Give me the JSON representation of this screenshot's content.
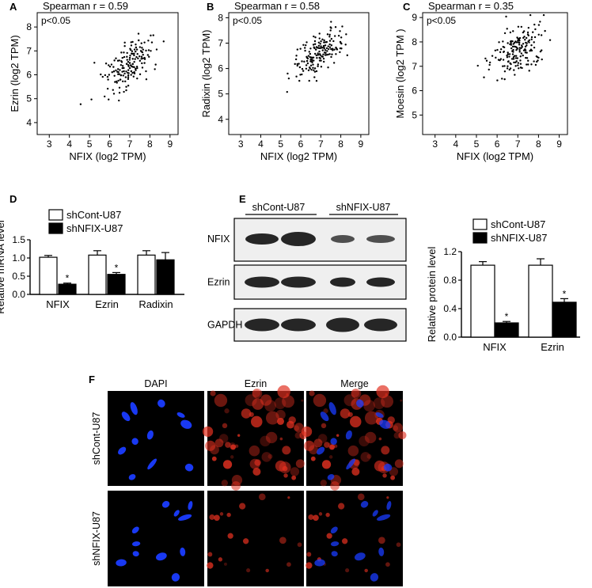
{
  "panel_letters": [
    "A",
    "B",
    "C",
    "D",
    "E",
    "F"
  ],
  "chart_data": [
    {
      "id": "A",
      "type": "scatter",
      "title": "Spearman r = 0.59",
      "annotation": "p<0.05",
      "xlabel": "NFIX (log2 TPM)",
      "ylabel": "Ezrin (log2 TPM)",
      "xlim": [
        2.4,
        9.4
      ],
      "ylim": [
        3.5,
        8.6
      ],
      "xticks": [
        3,
        4,
        5,
        6,
        7,
        8,
        9
      ],
      "yticks": [
        4,
        5,
        6,
        7,
        8
      ],
      "r": 0.59,
      "xmean": 6.9,
      "xsd": 0.95,
      "ymean": 6.4,
      "ysd": 0.8,
      "n": 170,
      "seed": 11
    },
    {
      "id": "B",
      "type": "scatter",
      "title": "Spearman r = 0.58",
      "annotation": "p<0.05",
      "xlabel": "NFIX (log2 TPM)",
      "ylabel": "Radixin (log2  TPM)",
      "xlim": [
        2.4,
        9.4
      ],
      "ylim": [
        3.4,
        8.2
      ],
      "xticks": [
        3,
        4,
        5,
        6,
        7,
        8,
        9
      ],
      "yticks": [
        4,
        5,
        6,
        7,
        8
      ],
      "r": 0.58,
      "xmean": 6.9,
      "xsd": 0.95,
      "ymean": 6.6,
      "ysd": 0.7,
      "n": 170,
      "seed": 23
    },
    {
      "id": "C",
      "type": "scatter",
      "title": "Spearman r = 0.35",
      "annotation": "p<0.05",
      "xlabel": "NFIX (log2 TPM)",
      "ylabel": "Moesin (log2 TPM )",
      "xlim": [
        2.4,
        9.4
      ],
      "ylim": [
        4.2,
        9.2
      ],
      "xticks": [
        3,
        4,
        5,
        6,
        7,
        8,
        9
      ],
      "yticks": [
        5,
        6,
        7,
        8,
        9
      ],
      "r": 0.35,
      "xmean": 6.9,
      "xsd": 0.95,
      "ymean": 7.6,
      "ysd": 0.75,
      "n": 170,
      "seed": 37
    },
    {
      "id": "D",
      "type": "bar",
      "ylabel": "Relative mRNA level",
      "categories": [
        "NFIX",
        "Ezrin",
        "Radixin"
      ],
      "series": [
        {
          "name": "shCont-U87",
          "values": [
            1.02,
            1.08,
            1.08
          ],
          "errors": [
            0.05,
            0.12,
            0.12
          ],
          "fill": "#ffffff"
        },
        {
          "name": "shNFIX-U87",
          "values": [
            0.28,
            0.55,
            0.95
          ],
          "errors": [
            0.03,
            0.05,
            0.2
          ],
          "fill": "#000000"
        }
      ],
      "significance": [
        "*",
        "*",
        ""
      ],
      "ylim": [
        0,
        1.5
      ],
      "yticks": [
        "0.0",
        "0.5",
        "1.0",
        "1.5"
      ]
    },
    {
      "id": "E",
      "type": "bar",
      "ylabel": "Relative protein level",
      "categories": [
        "NFIX",
        "Ezrin"
      ],
      "series": [
        {
          "name": "shCont-U87",
          "values": [
            1.01,
            1.01
          ],
          "errors": [
            0.05,
            0.09
          ],
          "fill": "#ffffff"
        },
        {
          "name": "shNFIX-U87",
          "values": [
            0.2,
            0.49
          ],
          "errors": [
            0.02,
            0.05
          ],
          "fill": "#000000"
        }
      ],
      "significance": [
        "*",
        "*"
      ],
      "ylim": [
        0,
        1.2
      ],
      "yticks": [
        "0.0",
        "0.4",
        "0.8",
        "1.2"
      ]
    }
  ],
  "western_blot": {
    "group_labels": [
      "shCont-U87",
      "shNFIX-U87"
    ],
    "rows": [
      "NFIX",
      "Ezrin",
      "GAPDH"
    ]
  },
  "microscopy": {
    "columns": [
      "DAPI",
      "Ezrin",
      "Merge"
    ],
    "rows": [
      "shCont-U87",
      "shNFIX-U87"
    ]
  },
  "colors": {
    "dapi": "#1a3cff",
    "ezrin": "#e03020",
    "background": "#000000",
    "blot": "#1a1a1a"
  }
}
